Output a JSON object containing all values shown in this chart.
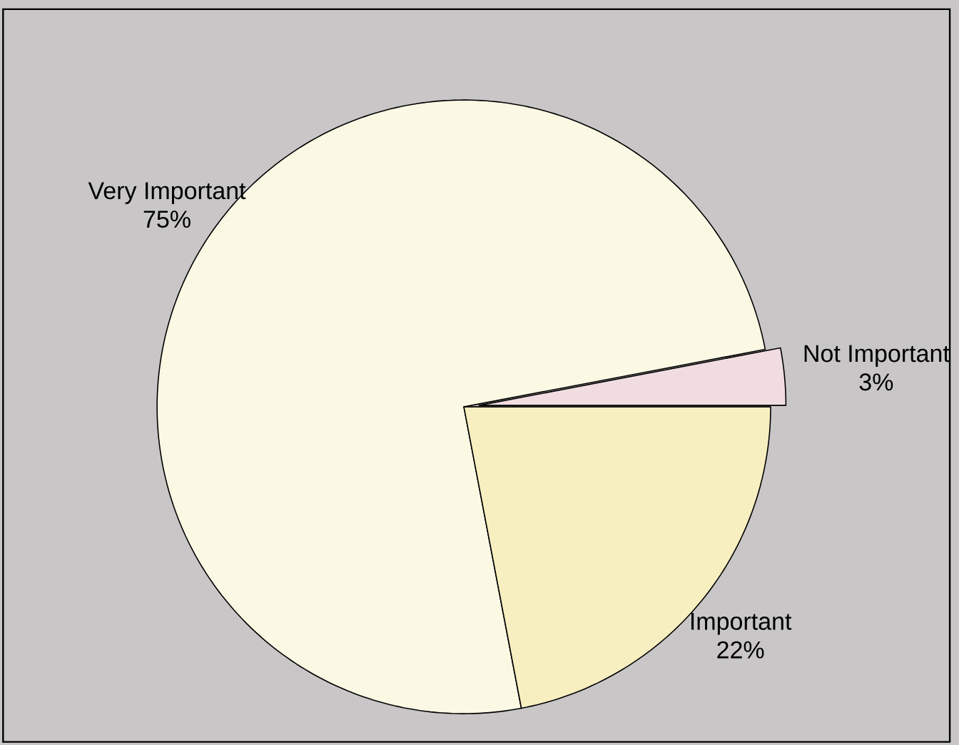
{
  "chart_data": {
    "type": "pie",
    "categories": [
      "Very Important",
      "Important",
      "Not Important"
    ],
    "values": [
      75,
      22,
      3
    ],
    "value_labels": [
      "75%",
      "22%",
      "3%"
    ],
    "colors": [
      "#fbf8e4",
      "#f7efc0",
      "#f1dde1"
    ]
  }
}
